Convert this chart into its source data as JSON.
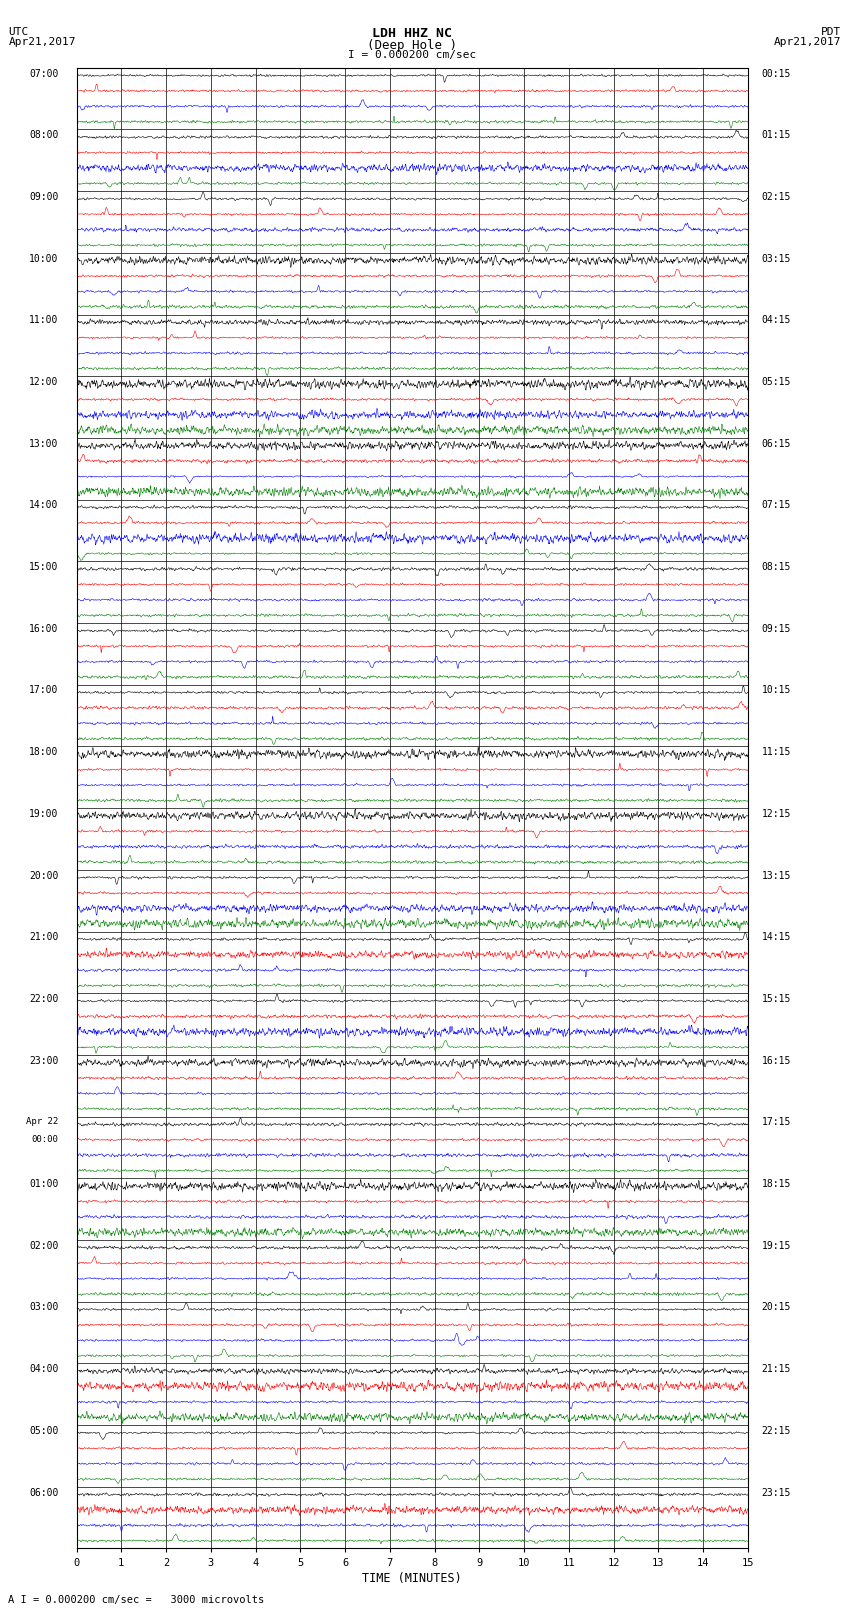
{
  "title_line1": "LDH HHZ NC",
  "title_line2": "(Deep Hole )",
  "scale_label": "I = 0.000200 cm/sec",
  "left_label_top": "UTC",
  "left_label_date": "Apr21,2017",
  "right_label_top": "PDT",
  "right_label_date": "Apr21,2017",
  "bottom_label": "TIME (MINUTES)",
  "footer_text": "A I = 0.000200 cm/sec =   3000 microvolts",
  "trace_colors": [
    "black",
    "red",
    "blue",
    "green"
  ],
  "n_hours": 24,
  "n_traces_per_hour": 4,
  "minutes": 15,
  "background_color": "white",
  "utc_labels": [
    "07:00",
    "08:00",
    "09:00",
    "10:00",
    "11:00",
    "12:00",
    "13:00",
    "14:00",
    "15:00",
    "16:00",
    "17:00",
    "18:00",
    "19:00",
    "20:00",
    "21:00",
    "22:00",
    "23:00",
    "Apr 22\n00:00",
    "01:00",
    "02:00",
    "03:00",
    "04:00",
    "05:00",
    "06:00"
  ],
  "pdt_labels": [
    "00:15",
    "01:15",
    "02:15",
    "03:15",
    "04:15",
    "05:15",
    "06:15",
    "07:15",
    "08:15",
    "09:15",
    "10:15",
    "11:15",
    "12:15",
    "13:15",
    "14:15",
    "15:15",
    "16:15",
    "17:15",
    "18:15",
    "19:15",
    "20:15",
    "21:15",
    "22:15",
    "23:15"
  ],
  "noise_base": 0.08,
  "spike_prob": 0.002
}
